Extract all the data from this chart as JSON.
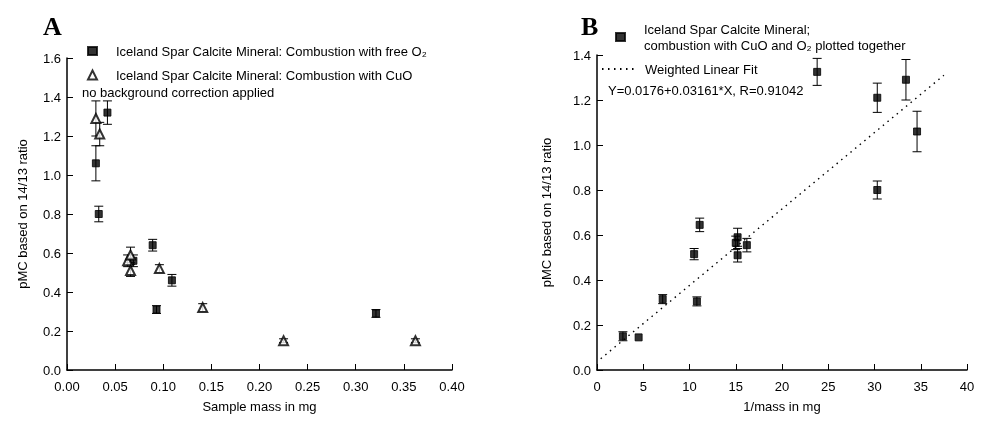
{
  "chart_data": [
    {
      "type": "scatter",
      "title": "A",
      "xlabel": "Sample mass in mg",
      "ylabel": "pMC based on 14/13 ratio",
      "xlim": [
        0,
        0.4
      ],
      "ylim": [
        0,
        1.6
      ],
      "xticks": [
        {
          "value": 0,
          "label": "0.00"
        },
        {
          "value": 0.05,
          "label": "0.05"
        },
        {
          "value": 0.1,
          "label": "0.10"
        },
        {
          "value": 0.15,
          "label": "0.15"
        },
        {
          "value": 0.2,
          "label": "0.20"
        },
        {
          "value": 0.25,
          "label": "0.25"
        },
        {
          "value": 0.3,
          "label": "0.30"
        },
        {
          "value": 0.35,
          "label": "0.35"
        },
        {
          "value": 0.4,
          "label": "0.40"
        }
      ],
      "yticks": [
        {
          "value": 0,
          "label": "0.0"
        },
        {
          "value": 0.2,
          "label": "0.2"
        },
        {
          "value": 0.4,
          "label": "0.4"
        },
        {
          "value": 0.6,
          "label": "0.6"
        },
        {
          "value": 0.8,
          "label": "0.8"
        },
        {
          "value": 1,
          "label": "1.0"
        },
        {
          "value": 1.2,
          "label": "1.2"
        },
        {
          "value": 1.4,
          "label": "1.4"
        },
        {
          "value": 1.6,
          "label": "1.6"
        }
      ],
      "legend": "top",
      "annotations": [
        "no background correction applied"
      ],
      "series": [
        {
          "name": "Iceland Spar Calcite Mineral: Combustion with free O₂",
          "color": "#000000",
          "marker": "square",
          "x": [
            0.03,
            0.042,
            0.033,
            0.069,
            0.089,
            0.093,
            0.109,
            0.321
          ],
          "values": [
            1.06,
            1.32,
            0.8,
            0.56,
            0.64,
            0.31,
            0.46,
            0.29
          ],
          "errors": [
            0.09,
            0.06,
            0.04,
            0.03,
            0.03,
            0.02,
            0.03,
            0.02
          ]
        },
        {
          "name": "Iceland Spar Calcite Mineral: Combustion with CuO",
          "color": "#000000",
          "marker": "triangle",
          "x": [
            0.03,
            0.034,
            0.063,
            0.066,
            0.066,
            0.096,
            0.141,
            0.225,
            0.362
          ],
          "values": [
            1.29,
            1.21,
            0.56,
            0.59,
            0.51,
            0.52,
            0.32,
            0.15,
            0.15
          ],
          "errors": [
            0.09,
            0.06,
            0.03,
            0.04,
            0.03,
            0.02,
            0.02,
            0.01,
            0.01
          ]
        }
      ]
    },
    {
      "type": "scatter",
      "title": "B",
      "xlabel": "1/mass in mg",
      "ylabel": "pMC based on 14/13 ratio",
      "xlim": [
        0,
        40
      ],
      "ylim": [
        0,
        1.4
      ],
      "xticks": [
        0,
        5,
        10,
        15,
        20,
        25,
        30,
        35,
        40
      ],
      "yticks": [
        {
          "value": 0,
          "label": "0.0"
        },
        {
          "value": 0.2,
          "label": "0.2"
        },
        {
          "value": 0.4,
          "label": "0.4"
        },
        {
          "value": 0.6,
          "label": "0.6"
        },
        {
          "value": 0.8,
          "label": "0.8"
        },
        {
          "value": 1,
          "label": "1.0"
        },
        {
          "value": 1.2,
          "label": "1.2"
        },
        {
          "value": 1.4,
          "label": "1.4"
        }
      ],
      "legend": "top left",
      "annotations": [
        "Y=0.0176+0.03161*X, R=0.91042"
      ],
      "series": [
        {
          "name": "Iceland Spar Calcite Mineral;\ncombustion with CuO and O₂ plotted together",
          "color": "#000000",
          "marker": "square",
          "x": [
            2.8,
            4.5,
            7.1,
            10.5,
            10.8,
            11.1,
            15.0,
            15.2,
            15.2,
            16.2,
            23.8,
            30.3,
            30.3,
            33.4,
            34.6
          ],
          "values": [
            0.15,
            0.145,
            0.315,
            0.515,
            0.305,
            0.645,
            0.565,
            0.59,
            0.51,
            0.555,
            1.325,
            1.21,
            0.8,
            1.29,
            1.06
          ],
          "errors": [
            0.02,
            null,
            0.02,
            0.025,
            0.02,
            0.03,
            0.03,
            0.04,
            0.03,
            0.03,
            0.06,
            0.065,
            0.04,
            0.09,
            0.09
          ]
        },
        {
          "type": "line",
          "name": "Weighted Linear Fit",
          "color": "#000000",
          "marker": "none",
          "line_style": "dotted",
          "x": [
            0.4,
            37.5
          ],
          "values": [
            0.05,
            1.31
          ]
        }
      ]
    }
  ]
}
